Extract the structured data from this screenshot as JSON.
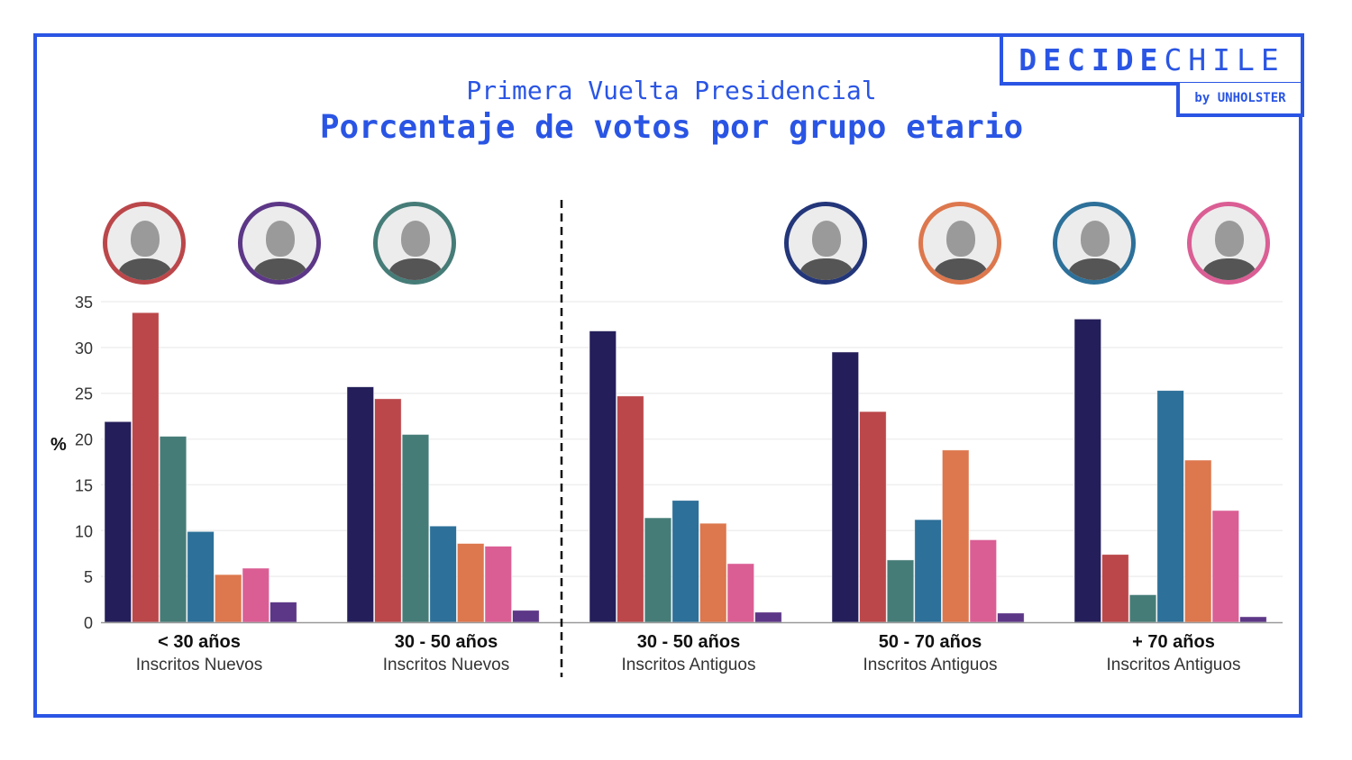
{
  "branding": {
    "logo_bold": "DECIDE",
    "logo_light": "CHILE",
    "logo_sub": "by UNHOLSTER",
    "accent": "#2a55e4"
  },
  "header": {
    "subtitle": "Primera Vuelta Presidencial",
    "title": "Porcentaje de votos por grupo etario"
  },
  "candidates": [
    {
      "id": "navy",
      "color": "#241e5a"
    },
    {
      "id": "red",
      "color": "#bb474a"
    },
    {
      "id": "teal",
      "color": "#467c78"
    },
    {
      "id": "blue",
      "color": "#2d7099"
    },
    {
      "id": "orange",
      "color": "#dd774d"
    },
    {
      "id": "pink",
      "color": "#da5e94"
    },
    {
      "id": "purple",
      "color": "#5d3787"
    }
  ],
  "portraits": [
    {
      "color": "#bb474a"
    },
    {
      "color": "#5d3787"
    },
    {
      "color": "#467c78"
    },
    {
      "color": "#23367a"
    },
    {
      "color": "#dd774d"
    },
    {
      "color": "#2d7099"
    },
    {
      "color": "#da5e94"
    }
  ],
  "chart_data": {
    "type": "bar",
    "title": "Porcentaje de votos por grupo etario",
    "subtitle": "Primera Vuelta Presidencial",
    "xlabel": "",
    "ylabel": "%",
    "ylim": [
      0,
      35
    ],
    "yticks": [
      "0",
      "5",
      "10",
      "15",
      "20",
      "25",
      "30",
      "35"
    ],
    "grid": true,
    "categories": [
      {
        "label": "< 30 años",
        "sublabel": "Inscritos Nuevos"
      },
      {
        "label": "30 - 50 años",
        "sublabel": "Inscritos Nuevos"
      },
      {
        "label": "30 - 50 años",
        "sublabel": "Inscritos Antiguos"
      },
      {
        "label": "50 - 70 años",
        "sublabel": "Inscritos Antiguos"
      },
      {
        "label": "+ 70 años",
        "sublabel": "Inscritos Antiguos"
      }
    ],
    "divider_after_category": 2,
    "series": [
      {
        "name": "navy",
        "values": [
          21.9,
          25.7,
          31.8,
          29.5,
          33.1
        ]
      },
      {
        "name": "red",
        "values": [
          33.8,
          24.4,
          24.7,
          23.0,
          7.4
        ]
      },
      {
        "name": "teal",
        "values": [
          20.3,
          20.5,
          11.4,
          6.8,
          3.0
        ]
      },
      {
        "name": "blue",
        "values": [
          9.9,
          10.5,
          13.3,
          11.2,
          25.3
        ]
      },
      {
        "name": "orange",
        "values": [
          5.2,
          8.6,
          10.8,
          18.8,
          17.7
        ]
      },
      {
        "name": "pink",
        "values": [
          5.9,
          8.3,
          6.4,
          9.0,
          12.2
        ]
      },
      {
        "name": "purple",
        "values": [
          2.2,
          1.3,
          1.1,
          1.0,
          0.6
        ]
      }
    ]
  }
}
